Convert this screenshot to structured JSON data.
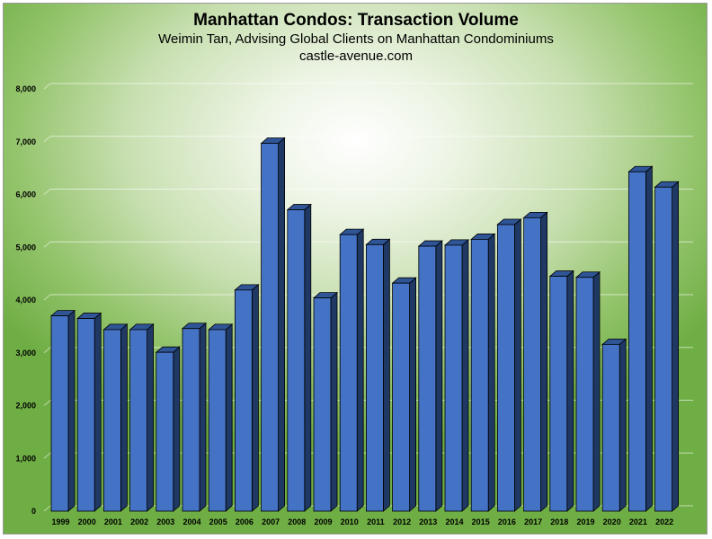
{
  "chart_data": {
    "type": "bar",
    "title": "Manhattan Condos: Transaction Volume",
    "subtitle": "Weimin Tan, Advising Global Clients on Manhattan Condominiums",
    "source": "castle-avenue.com",
    "xlabel": "",
    "ylabel": "",
    "categories": [
      "1999",
      "2000",
      "2001",
      "2002",
      "2003",
      "2004",
      "2005",
      "2006",
      "2007",
      "2008",
      "2009",
      "2010",
      "2011",
      "2012",
      "2013",
      "2014",
      "2015",
      "2016",
      "2017",
      "2018",
      "2019",
      "2020",
      "2021",
      "2022"
    ],
    "values": [
      3700,
      3650,
      3440,
      3440,
      3010,
      3460,
      3440,
      4190,
      6970,
      5710,
      4040,
      5240,
      5050,
      4320,
      5020,
      5040,
      5150,
      5430,
      5560,
      4450,
      4430,
      3160,
      6430,
      6140
    ],
    "ylim": [
      0,
      8000
    ],
    "yticks": [
      "0",
      "1,000",
      "2,000",
      "3,000",
      "4,000",
      "5,000",
      "6,000",
      "7,000",
      "8,000"
    ],
    "grid": true,
    "legend": "none",
    "colors": {
      "bar_front": "#4472c4",
      "bar_top": "#2f5597",
      "bar_side": "#1f3864",
      "bar_edge": "#000000"
    }
  }
}
